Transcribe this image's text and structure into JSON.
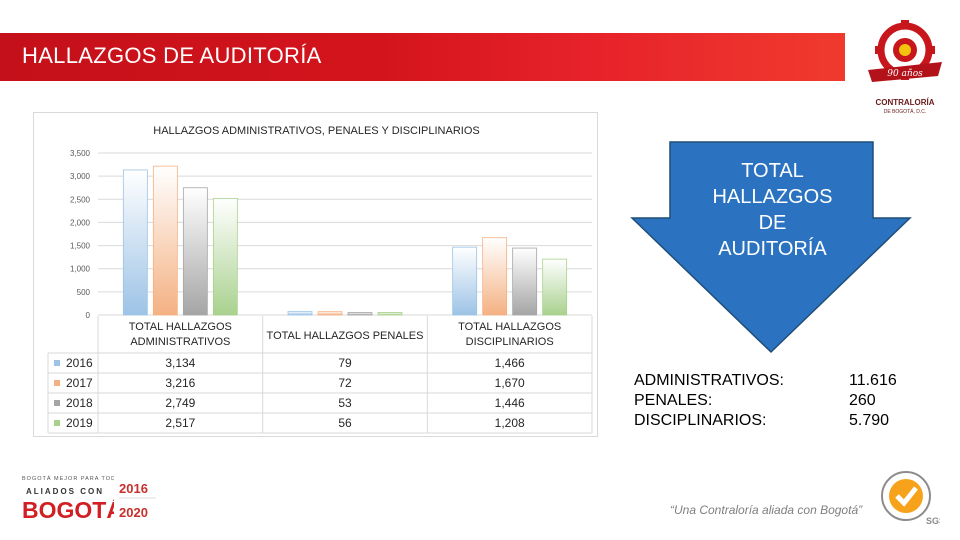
{
  "header": {
    "title": "HALLAZGOS DE AUDITORÍA"
  },
  "top_logo": {
    "caption1": "CONTRALORÍA",
    "caption2": "DE BOGOTÁ, D.C.",
    "badge_text": "90 años"
  },
  "colors": {
    "header_red": "#d4141c",
    "arrow_blue": "#2b73c0",
    "series_2016": "#9dc3e6",
    "series_2017": "#f4b183",
    "series_2018": "#a5a5a5",
    "series_2019": "#a9d18e"
  },
  "chart_data": {
    "type": "bar",
    "title": "HALLAZGOS ADMINISTRATIVOS, PENALES Y DISCIPLINARIOS",
    "categories": [
      [
        "TOTAL HALLAZGOS",
        "ADMINISTRATIVOS"
      ],
      [
        "TOTAL HALLAZGOS PENALES"
      ],
      [
        "TOTAL HALLAZGOS",
        "DISCIPLINARIOS"
      ]
    ],
    "series": [
      {
        "name": "2016",
        "values": [
          3134,
          79,
          1466
        ],
        "labels": [
          "3,134",
          "79",
          "1,466"
        ]
      },
      {
        "name": "2017",
        "values": [
          3216,
          72,
          1670
        ],
        "labels": [
          "3,216",
          "72",
          "1,670"
        ]
      },
      {
        "name": "2018",
        "values": [
          2749,
          53,
          1446
        ],
        "labels": [
          "2,749",
          "53",
          "1,446"
        ]
      },
      {
        "name": "2019",
        "values": [
          2517,
          56,
          1208
        ],
        "labels": [
          "2,517",
          "56",
          "1,208"
        ]
      }
    ],
    "yticks": [
      "3,500",
      "3,000",
      "2,500",
      "2,000",
      "1,500",
      "1,000",
      "500",
      "0"
    ],
    "ylim": [
      0,
      3500
    ],
    "grid": true,
    "legend": "data-table"
  },
  "arrow": {
    "lines": [
      "TOTAL",
      "HALLAZGOS",
      "DE",
      "AUDITORÍA"
    ]
  },
  "totals": [
    {
      "label": "ADMINISTRATIVOS:",
      "value": "11.616"
    },
    {
      "label": "PENALES:",
      "value": "260"
    },
    {
      "label": "DISCIPLINARIOS:",
      "value": "5.790"
    }
  ],
  "footer": {
    "logo_small": "BOGOTÁ MEJOR PARA TODOS",
    "logo_mid": "ALIADOS CON",
    "logo_main": "BOGOTÁ",
    "years": [
      "2016",
      "2020"
    ],
    "slogan": "“Una Contraloría aliada con Bogotá”",
    "sgs": "SGS"
  }
}
